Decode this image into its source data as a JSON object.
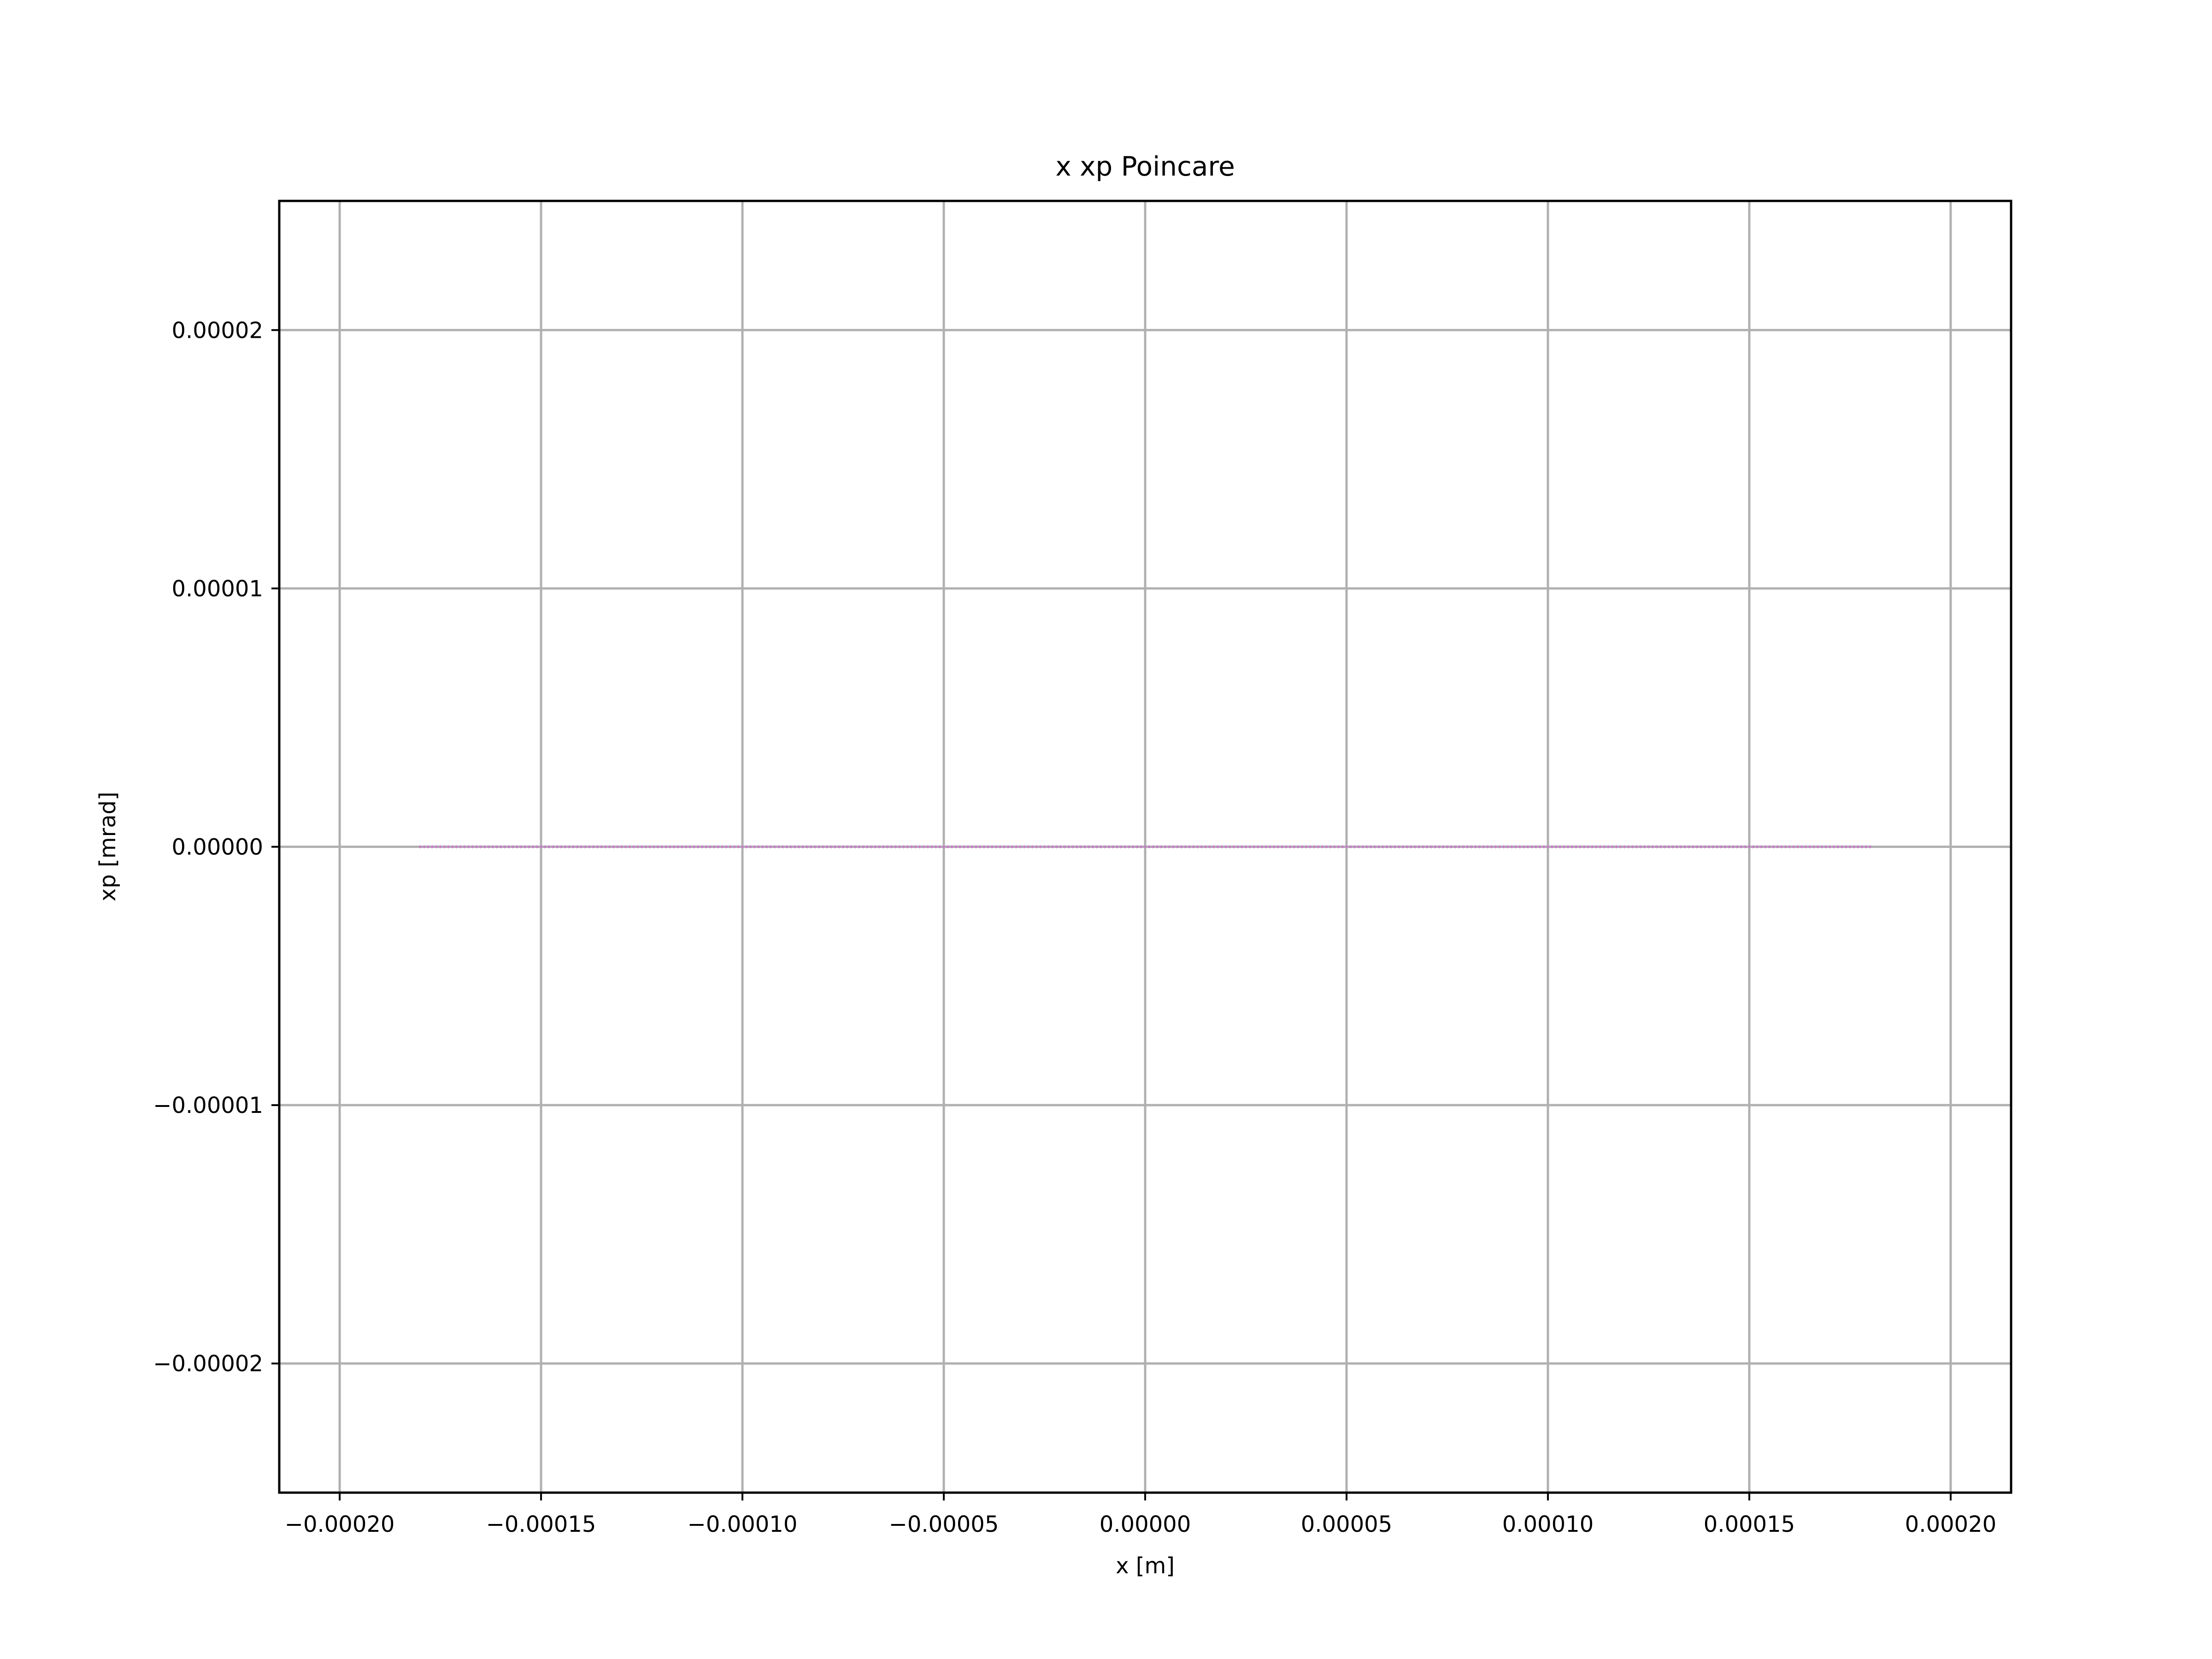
{
  "chart_data": {
    "type": "scatter",
    "title": "x xp Poincare",
    "xlabel": "x [m]",
    "ylabel": "xp [mrad]",
    "xlim": [
      -0.000215,
      0.000215
    ],
    "ylim": [
      -2.5e-05,
      2.5e-05
    ],
    "xticks": [
      {
        "value": -0.0002,
        "label": "−0.00020"
      },
      {
        "value": -0.00015,
        "label": "−0.00015"
      },
      {
        "value": -0.0001,
        "label": "−0.00010"
      },
      {
        "value": -5e-05,
        "label": "−0.00005"
      },
      {
        "value": 0.0,
        "label": "0.00000"
      },
      {
        "value": 5e-05,
        "label": "0.00005"
      },
      {
        "value": 0.0001,
        "label": "0.00010"
      },
      {
        "value": 0.00015,
        "label": "0.00015"
      },
      {
        "value": 0.0002,
        "label": "0.00020"
      }
    ],
    "yticks": [
      {
        "value": 2e-05,
        "label": "0.00002"
      },
      {
        "value": 1e-05,
        "label": "0.00001"
      },
      {
        "value": 0.0,
        "label": "0.00000"
      },
      {
        "value": -1e-05,
        "label": "−0.00001"
      },
      {
        "value": -2e-05,
        "label": "−0.00002"
      }
    ],
    "grid": true,
    "series": [
      {
        "color": "#c77cc7",
        "x_range": [
          -0.00018,
          0.00018
        ],
        "point_count": 361,
        "y": 0.0
      }
    ]
  }
}
